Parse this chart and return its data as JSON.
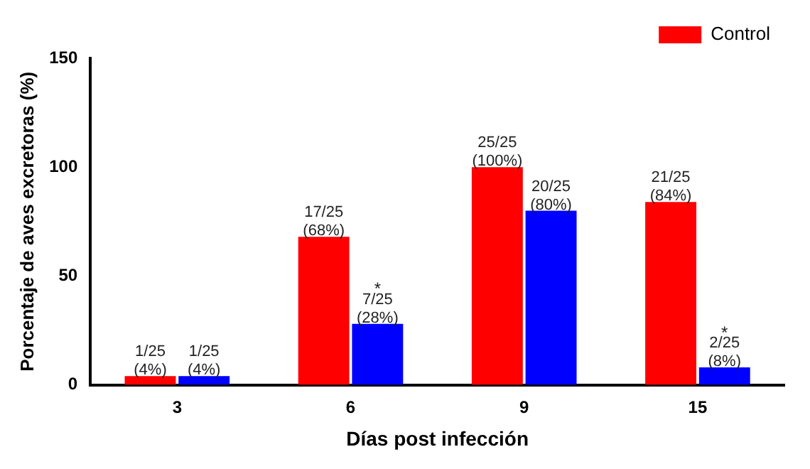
{
  "chart_data": {
    "type": "bar",
    "xlabel": "Días post infección",
    "ylabel": "Porcentaje de aves excretoras (%)",
    "categories": [
      "3",
      "6",
      "9",
      "15"
    ],
    "series": [
      {
        "name": "Control",
        "color": "#ff0000",
        "values": [
          4,
          68,
          100,
          84
        ],
        "value_labels": [
          "1/25 (4%)",
          "17/25 (68%)",
          "25/25 (100%)",
          "21/25 (84%)"
        ]
      },
      {
        "color": "#0000ff",
        "values": [
          4,
          28,
          80,
          8
        ],
        "value_labels": [
          "1/25 (4%)",
          "7/25 (28%)",
          "20/25 (80%)",
          "2/25 (8%)"
        ]
      }
    ],
    "annotations": [
      {
        "text": "*",
        "x": "6",
        "y": 28
      },
      {
        "text": "*",
        "x": "15",
        "y": 8
      }
    ],
    "ylim": [
      0,
      150
    ],
    "yticks": [
      0,
      50,
      100,
      150
    ],
    "grid": false,
    "legend": "top right"
  }
}
